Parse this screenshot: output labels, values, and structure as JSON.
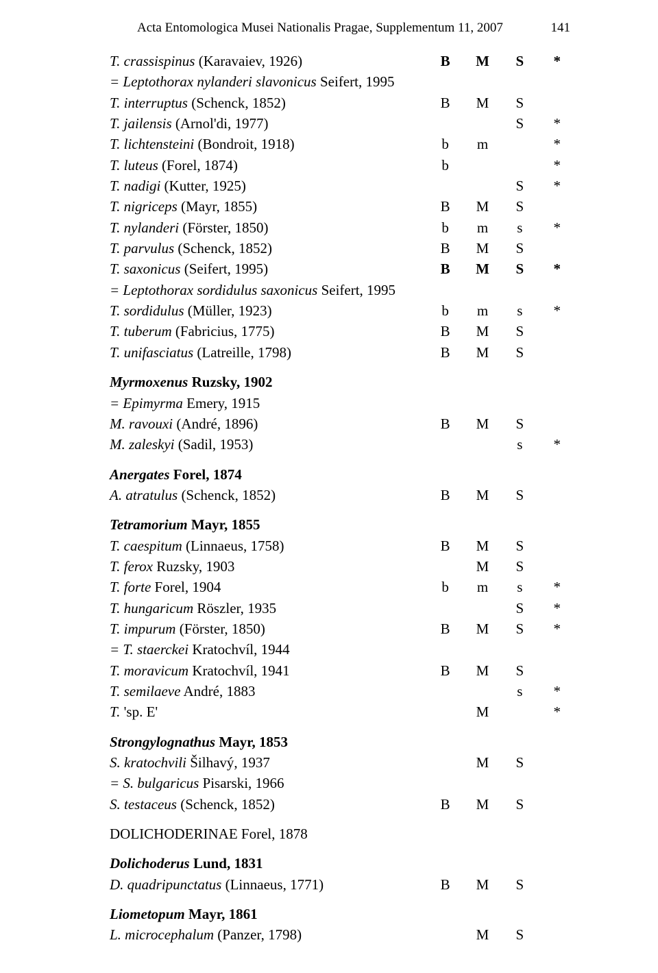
{
  "header": {
    "title": "Acta Entomologica Musei Nationalis Pragae, Supplementum 11, 2007",
    "page_number": "141"
  },
  "rows": [
    {
      "name_it": "T. crassispinus",
      "name_rest": " (Karavaiev, 1926)",
      "b": "B",
      "m": "M",
      "s": "S",
      "x": "*",
      "bold_cols": true,
      "indent": 1
    },
    {
      "note": "= Leptothorax nylanderi slavonicus Seifert, 1995",
      "note_it": "= Leptothorax nylanderi slavonicus",
      "note_rest": " Seifert, 1995",
      "indent": 1
    },
    {
      "name_it": "T. interruptus",
      "name_rest": " (Schenck, 1852)",
      "b": "B",
      "m": "M",
      "s": "S",
      "x": "",
      "indent": 1
    },
    {
      "name_it": "T. jailensis",
      "name_rest": " (Arnol'di, 1977)",
      "b": "",
      "m": "",
      "s": "S",
      "x": "*",
      "indent": 1
    },
    {
      "name_it": "T. lichtensteini",
      "name_rest": " (Bondroit, 1918)",
      "b": "b",
      "m": "m",
      "s": "",
      "x": "*",
      "indent": 1
    },
    {
      "name_it": "T. luteus",
      "name_rest": " (Forel, 1874)",
      "b": "b",
      "m": "",
      "s": "",
      "x": "*",
      "indent": 1
    },
    {
      "name_it": "T. nadigi",
      "name_rest": " (Kutter, 1925)",
      "b": "",
      "m": "",
      "s": "S",
      "x": "*",
      "indent": 1
    },
    {
      "name_it": "T. nigriceps",
      "name_rest": " (Mayr, 1855)",
      "b": "B",
      "m": "M",
      "s": "S",
      "x": "",
      "indent": 1
    },
    {
      "name_it": "T. nylanderi",
      "name_rest": " (Förster, 1850)",
      "b": "b",
      "m": "m",
      "s": "s",
      "x": "*",
      "indent": 1
    },
    {
      "name_it": "T. parvulus",
      "name_rest": " (Schenck, 1852)",
      "b": "B",
      "m": "M",
      "s": "S",
      "x": "",
      "indent": 1
    },
    {
      "name_it": "T. saxonicus",
      "name_rest": " (Seifert, 1995)",
      "b": "B",
      "m": "M",
      "s": "S",
      "x": "*",
      "bold_cols": true,
      "indent": 1
    },
    {
      "note_it": "= Leptothorax sordidulus saxonicus",
      "note_rest": " Seifert, 1995",
      "indent": 1
    },
    {
      "name_it": "T. sordidulus",
      "name_rest": " (Müller, 1923)",
      "b": "b",
      "m": "m",
      "s": "s",
      "x": "*",
      "indent": 1
    },
    {
      "name_it": "T. tuberum",
      "name_rest": " (Fabricius, 1775)",
      "b": "B",
      "m": "M",
      "s": "S",
      "x": "",
      "indent": 1
    },
    {
      "name_it": "T. unifasciatus",
      "name_rest": " (Latreille, 1798)",
      "b": "B",
      "m": "M",
      "s": "S",
      "x": "",
      "indent": 1
    },
    {
      "genus_it": "Myrmoxenus",
      "genus_rest": " Ruzsky, 1902",
      "indent": 0,
      "gap": true
    },
    {
      "note_it": "= Epimyrma",
      "note_rest": " Emery, 1915",
      "indent": 0
    },
    {
      "name_it": "M. ravouxi",
      "name_rest": " (André, 1896)",
      "b": "B",
      "m": "M",
      "s": "S",
      "x": "",
      "indent": 1
    },
    {
      "name_it": "M. zaleskyi",
      "name_rest": " (Sadil, 1953)",
      "b": "",
      "m": "",
      "s": "s",
      "x": "*",
      "indent": 1
    },
    {
      "genus_it": "Anergates",
      "genus_rest": " Forel, 1874",
      "indent": 0,
      "gap": true
    },
    {
      "name_it": "A. atratulus",
      "name_rest": " (Schenck, 1852)",
      "b": "B",
      "m": "M",
      "s": "S",
      "x": "",
      "indent": 1
    },
    {
      "genus_it": "Tetramorium",
      "genus_rest": " Mayr, 1855",
      "indent": 0,
      "gap": true
    },
    {
      "name_it": "T. caespitum",
      "name_rest": " (Linnaeus, 1758)",
      "b": "B",
      "m": "M",
      "s": "S",
      "x": "",
      "indent": 1
    },
    {
      "name_it": "T. ferox",
      "name_rest": " Ruzsky, 1903",
      "b": "",
      "m": "M",
      "s": "S",
      "x": "",
      "indent": 1
    },
    {
      "name_it": "T. forte",
      "name_rest": " Forel, 1904",
      "b": "b",
      "m": "m",
      "s": "s",
      "x": "*",
      "indent": 1
    },
    {
      "name_it": "T. hungaricum",
      "name_rest": " Röszler, 1935",
      "b": "",
      "m": "",
      "s": "S",
      "x": "*",
      "indent": 1
    },
    {
      "name_it": "T. impurum",
      "name_rest": " (Förster, 1850)",
      "b": "B",
      "m": "M",
      "s": "S",
      "x": "*",
      "indent": 1
    },
    {
      "note_it": "= T. staerckei",
      "note_rest": " Kratochvíl, 1944",
      "indent": 1
    },
    {
      "name_it": "T. moravicum",
      "name_rest": " Kratochvíl, 1941",
      "b": "B",
      "m": "M",
      "s": "S",
      "x": "",
      "indent": 1
    },
    {
      "name_it": "T. semilaeve",
      "name_rest": " André, 1883",
      "b": "",
      "m": "",
      "s": "s",
      "x": "*",
      "indent": 1
    },
    {
      "name_it": "T.",
      "name_rest": " 'sp. E'",
      "b": "",
      "m": "M",
      "s": "",
      "x": "*",
      "indent": 1
    },
    {
      "genus_it": "Strongylognathus",
      "genus_rest": " Mayr, 1853",
      "indent": 0,
      "gap": true
    },
    {
      "name_it": "S. kratochvili",
      "name_rest": " Šilhavý, 1937",
      "b": "",
      "m": "M",
      "s": "S",
      "x": "",
      "indent": 1
    },
    {
      "note_it": "= S. bulgaricus",
      "note_rest": " Pisarski, 1966",
      "indent": 1
    },
    {
      "name_it": "S. testaceus",
      "name_rest": " (Schenck, 1852)",
      "b": "B",
      "m": "M",
      "s": "S",
      "x": "",
      "indent": 1
    },
    {
      "subfamily": "DOLICHODERINAE Forel, 1878",
      "indent": 0,
      "gap": true,
      "biggap": true
    },
    {
      "genus_it": "Dolichoderus",
      "genus_rest": " Lund, 1831",
      "indent": 0,
      "gap": true
    },
    {
      "name_it": "D. quadripunctatus",
      "name_rest": " (Linnaeus, 1771)",
      "b": "B",
      "m": "M",
      "s": "S",
      "x": "",
      "indent": 1
    },
    {
      "genus_it": "Liometopum",
      "genus_rest": " Mayr, 1861",
      "indent": 0,
      "gap": true
    },
    {
      "name_it": "L. microcephalum",
      "name_rest": " (Panzer, 1798)",
      "b": "",
      "m": "M",
      "s": "S",
      "x": "",
      "indent": 1
    }
  ]
}
